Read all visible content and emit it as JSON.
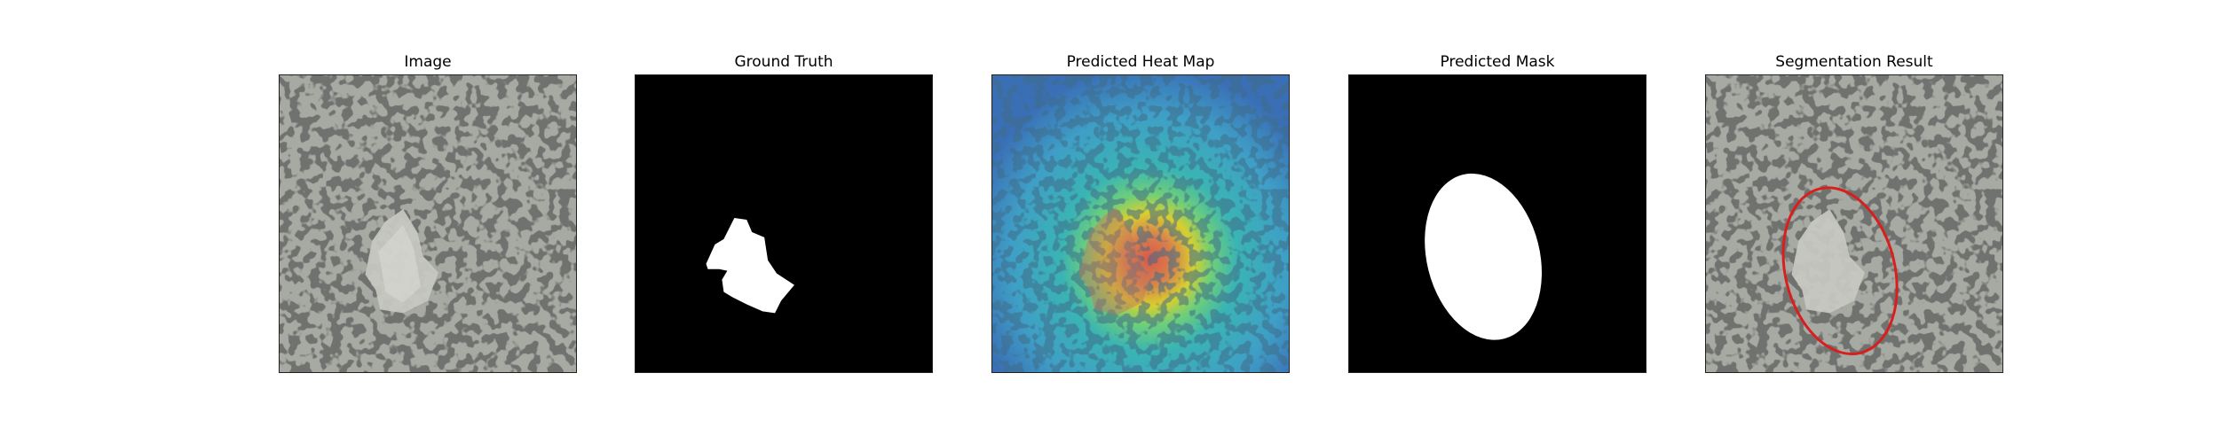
{
  "figure": {
    "panels": [
      {
        "id": "image",
        "title": "Image"
      },
      {
        "id": "ground-truth",
        "title": "Ground Truth"
      },
      {
        "id": "heat-map",
        "title": "Predicted Heat Map"
      },
      {
        "id": "mask",
        "title": "Predicted Mask"
      },
      {
        "id": "segmentation",
        "title": "Segmentation Result"
      }
    ]
  },
  "colors": {
    "texture_base": "#a7aaa3",
    "texture_spot": "#3b3c3a",
    "defect": "#c9c9c2",
    "mask_fg": "#ffffff",
    "mask_bg": "#000000",
    "contour": "#d91e1e"
  }
}
